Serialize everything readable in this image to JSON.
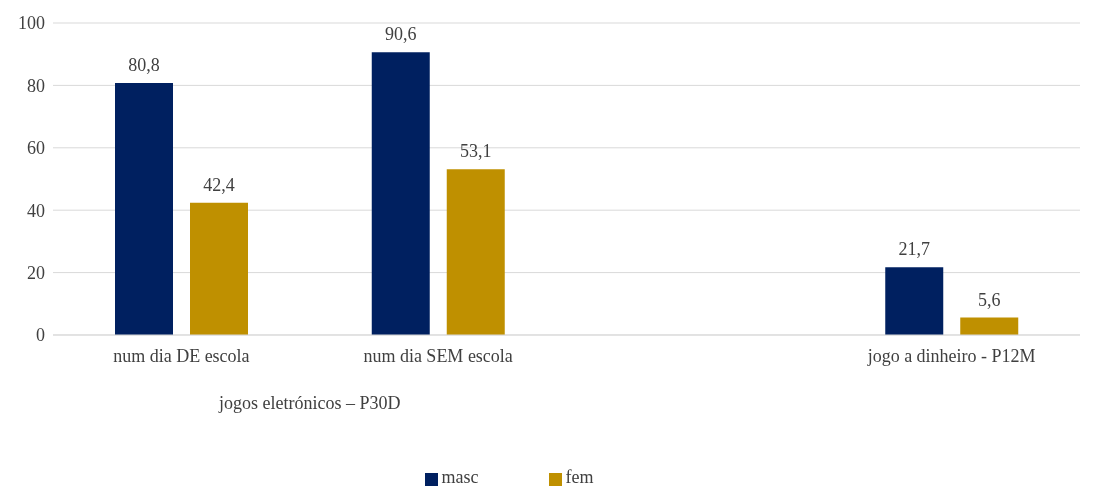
{
  "chart_data": {
    "type": "bar",
    "categories": [
      "num dia DE escola",
      "num dia SEM escola",
      null,
      "jogo a dinheiro - P12M"
    ],
    "series": [
      {
        "name": "masc",
        "color": "#002060",
        "values": [
          80.8,
          90.6,
          null,
          21.7
        ],
        "value_labels": [
          "80,8",
          "90,6",
          null,
          "21,7"
        ]
      },
      {
        "name": "fem",
        "color": "#bf9000",
        "values": [
          42.4,
          53.1,
          null,
          5.6
        ],
        "value_labels": [
          "42,4",
          "53,1",
          null,
          "5,6"
        ]
      }
    ],
    "ylim": [
      0,
      100
    ],
    "yticks": [
      0,
      20,
      40,
      60,
      80,
      100
    ],
    "grid": "y",
    "legend": "bottom",
    "annotations": [
      "jogos eletrónicos – P30D"
    ]
  }
}
